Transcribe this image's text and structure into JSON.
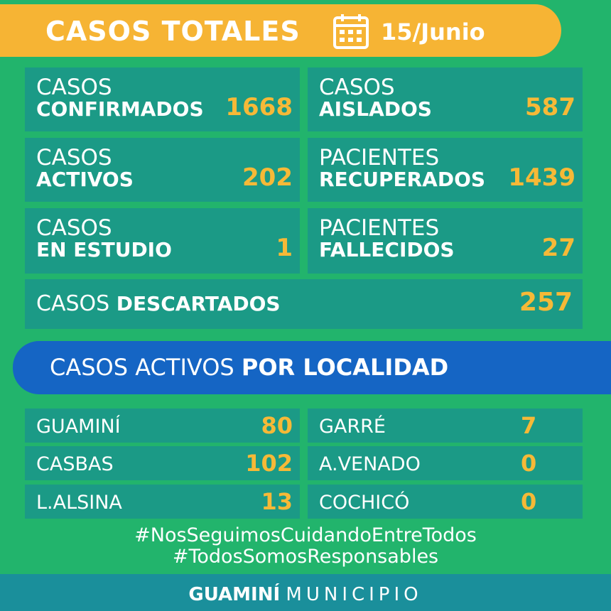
{
  "header": {
    "title": "CASOS TOTALES",
    "date": "15/Junio"
  },
  "totals": [
    {
      "prefix": "CASOS",
      "label": "CONFIRMADOS",
      "value": 1668
    },
    {
      "prefix": "CASOS",
      "label": "AISLADOS",
      "value": 587
    },
    {
      "prefix": "CASOS",
      "label": "ACTIVOS",
      "value": 202
    },
    {
      "prefix": "PACIENTES",
      "label": "RECUPERADOS",
      "value": 1439
    },
    {
      "prefix": "CASOS",
      "label": "EN ESTUDIO",
      "value": 1
    },
    {
      "prefix": "PACIENTES",
      "label": "FALLECIDOS",
      "value": 27
    }
  ],
  "discarded": {
    "prefix": "CASOS",
    "label": "DESCARTADOS",
    "value": 257
  },
  "localidad": {
    "title_light": "CASOS ACTIVOS",
    "title_bold": "POR LOCALIDAD",
    "rows": [
      {
        "name": "GUAMINÍ",
        "value": 80
      },
      {
        "name": "GARRÉ",
        "value": 7
      },
      {
        "name": "CASBAS",
        "value": 102
      },
      {
        "name": "A.VENADO",
        "value": 0
      },
      {
        "name": "L.ALSINA",
        "value": 13
      },
      {
        "name": "COCHICÓ",
        "value": 0
      }
    ]
  },
  "hashtags": [
    "#NosSeguimosCuidandoEntreTodos",
    "#TodosSomosResponsables"
  ],
  "footer": {
    "bold": "GUAMINÍ",
    "light": "MUNICIPIO"
  }
}
